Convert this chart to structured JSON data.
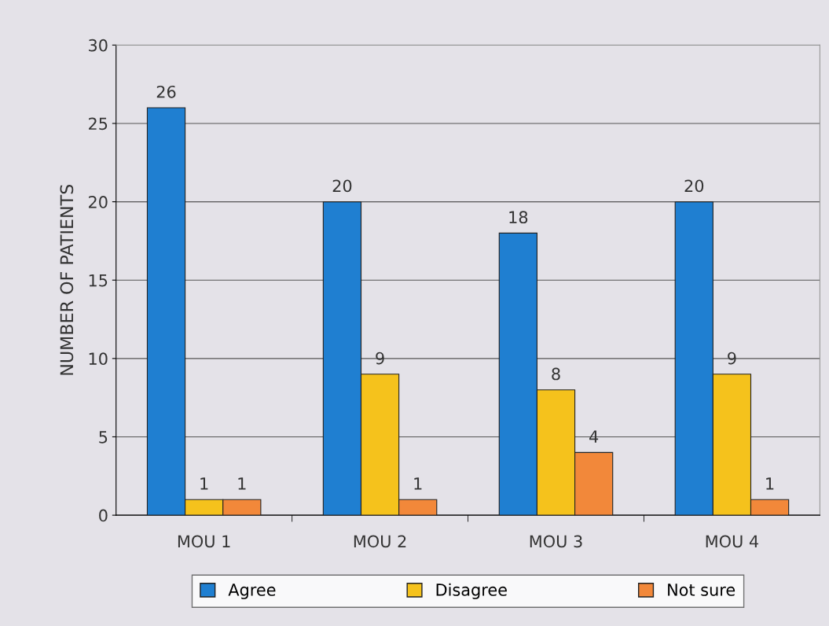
{
  "chart_data": {
    "type": "bar",
    "ylabel": "NUMBER OF PATIENTS",
    "categories": [
      "MOU 1",
      "MOU 2",
      "MOU 3",
      "MOU 4"
    ],
    "series": [
      {
        "name": "Agree",
        "color": "#1f7fd1",
        "values": [
          26,
          20,
          18,
          20
        ]
      },
      {
        "name": "Disagree",
        "color": "#f5c21c",
        "values": [
          1,
          9,
          8,
          9
        ]
      },
      {
        "name": "Not sure",
        "color": "#f2883a",
        "values": [
          1,
          1,
          4,
          1
        ]
      }
    ],
    "ylim": [
      0,
      30
    ],
    "yticks": [
      0,
      5,
      10,
      15,
      20,
      25,
      30
    ],
    "grid": "y",
    "legend": "bottom",
    "data_labels": true
  }
}
